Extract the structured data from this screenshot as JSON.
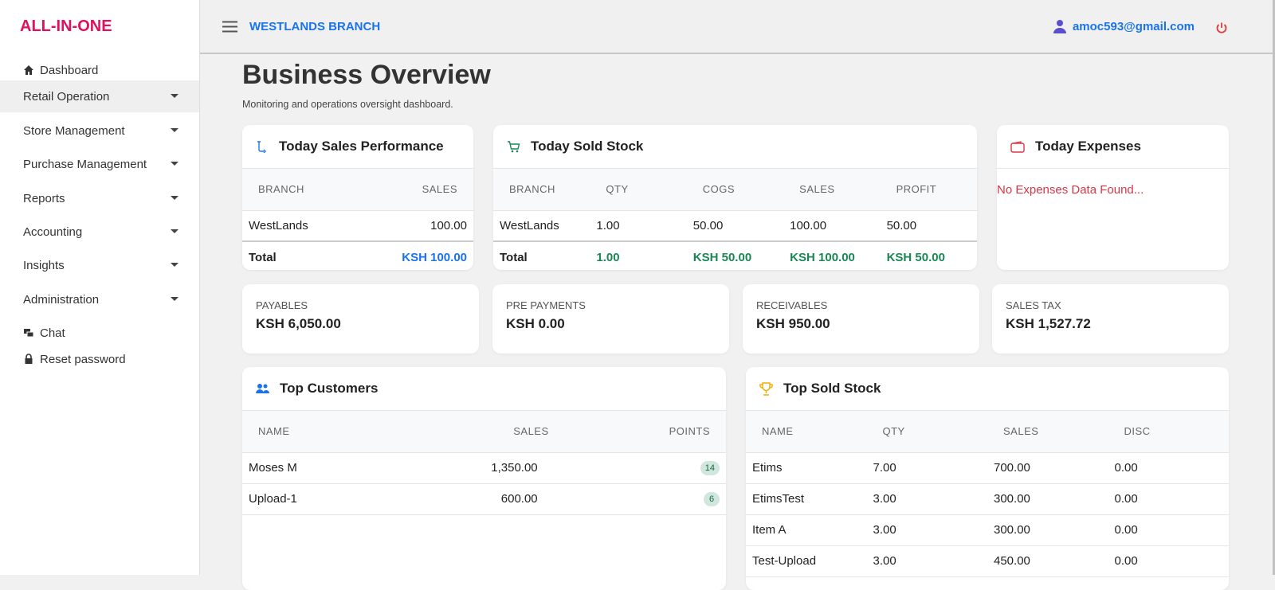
{
  "sidebar": {
    "brand": "ALL-IN-ONE",
    "menu": [
      "Dashboard",
      "Retail Operation",
      "Store Management",
      "Purchase Management",
      "Reports",
      "Accounting",
      "Insights",
      "Administration",
      "Chat",
      "Reset password"
    ]
  },
  "header": {
    "branch": "WESTLANDS BRANCH",
    "user": "amoc593@gmail.com"
  },
  "page": {
    "title": "Business Overview",
    "subtitle": "Monitoring and operations oversight dashboard."
  },
  "sales_performance": {
    "title": "Today Sales Performance",
    "columns": [
      "BRANCH",
      "SALES"
    ],
    "rows": [
      [
        "WestLands",
        "100.00"
      ]
    ],
    "total": [
      "Total",
      "KSH 100.00"
    ]
  },
  "sold_stock": {
    "title": "Today Sold Stock",
    "columns": [
      "BRANCH",
      "QTY",
      "COGS",
      "SALES",
      "PROFIT"
    ],
    "rows": [
      [
        "WestLands",
        "1.00",
        "50.00",
        "100.00",
        "50.00"
      ]
    ],
    "total": [
      "Total",
      "1.00",
      "KSH 50.00",
      "KSH 100.00",
      "KSH 50.00"
    ]
  },
  "expenses": {
    "title": "Today Expenses",
    "message": "No Expenses Data Found..."
  },
  "summary": [
    {
      "label": "PAYABLES",
      "value": "KSH 6,050.00"
    },
    {
      "label": "PRE PAYMENTS",
      "value": "KSH 0.00"
    },
    {
      "label": "RECEIVABLES",
      "value": "KSH 950.00"
    },
    {
      "label": "SALES TAX",
      "value": "KSH 1,527.72"
    }
  ],
  "top_customers": {
    "title": "Top Customers",
    "columns": [
      "NAME",
      "SALES",
      "POINTS"
    ],
    "rows": [
      [
        "Moses M",
        "1,350.00",
        "14"
      ],
      [
        "Upload-1",
        "600.00",
        "6"
      ]
    ]
  },
  "top_stock": {
    "title": "Top Sold Stock",
    "columns": [
      "NAME",
      "QTY",
      "SALES",
      "DISC"
    ],
    "rows": [
      [
        "Etims",
        "7.00",
        "700.00",
        "0.00"
      ],
      [
        "EtimsTest",
        "3.00",
        "300.00",
        "0.00"
      ],
      [
        "Item A",
        "3.00",
        "300.00",
        "0.00"
      ],
      [
        "Test-Upload",
        "3.00",
        "450.00",
        "0.00"
      ]
    ]
  }
}
